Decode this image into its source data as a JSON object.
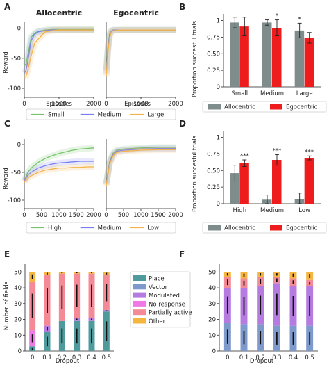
{
  "panels": {
    "A": "A",
    "B": "B",
    "C": "C",
    "D": "D",
    "E": "E",
    "F": "F"
  },
  "colors": {
    "small": "#77c46a",
    "medium": "#7a7ef0",
    "large": "#f5b24a",
    "allocentric_bar": "#7f8c8c",
    "egocentric_bar": "#ee1c1c",
    "place": "#4f9a9c",
    "vector": "#7e99cc",
    "modulated": "#b57be0",
    "no_response": "#ef7ae5",
    "partially_active": "#f48a96",
    "other": "#f4b63e"
  },
  "chart_data": [
    {
      "id": "A_allocentric",
      "type": "line",
      "title": "Allocentric",
      "xlabel": "Episodes",
      "ylabel": "Reward",
      "xlim": [
        0,
        2000
      ],
      "ylim": [
        -115,
        10
      ],
      "xticks": [
        0,
        1000,
        2000
      ],
      "yticks": [
        0,
        -50,
        -100
      ],
      "series": [
        {
          "name": "Small",
          "x": [
            0,
            50,
            100,
            200,
            300,
            400,
            600,
            800,
            1000,
            1500,
            2000
          ],
          "y": [
            -60,
            -60,
            -45,
            -15,
            -8,
            -5,
            -3,
            -2,
            -2,
            -2,
            -2
          ]
        },
        {
          "name": "Medium",
          "x": [
            0,
            50,
            100,
            200,
            300,
            400,
            600,
            800,
            1000,
            1500,
            2000
          ],
          "y": [
            -75,
            -70,
            -55,
            -20,
            -10,
            -6,
            -4,
            -3,
            -3,
            -3,
            -3
          ]
        },
        {
          "name": "Large",
          "x": [
            0,
            50,
            100,
            200,
            300,
            400,
            500,
            600,
            800,
            1000,
            1500,
            2000
          ],
          "y": [
            -80,
            -80,
            -70,
            -45,
            -25,
            -18,
            -12,
            -6,
            -4,
            -3,
            -3,
            -3
          ]
        }
      ]
    },
    {
      "id": "A_egocentric",
      "type": "line",
      "title": "Egocentric",
      "xlabel": "Episodes",
      "ylabel": "",
      "xlim": [
        0,
        2000
      ],
      "ylim": [
        -115,
        10
      ],
      "xticks": [
        0,
        1000,
        2000
      ],
      "yticks": [],
      "series": [
        {
          "name": "Small",
          "x": [
            0,
            50,
            100,
            150,
            200,
            400,
            1000,
            2000
          ],
          "y": [
            -70,
            -30,
            -8,
            -4,
            -3,
            -3,
            -3,
            -3
          ]
        },
        {
          "name": "Medium",
          "x": [
            0,
            50,
            100,
            150,
            200,
            400,
            1000,
            2000
          ],
          "y": [
            -75,
            -35,
            -10,
            -5,
            -3,
            -3,
            -3,
            -3
          ]
        },
        {
          "name": "Large",
          "x": [
            0,
            50,
            100,
            150,
            200,
            400,
            1000,
            2000
          ],
          "y": [
            -80,
            -40,
            -15,
            -6,
            -4,
            -3,
            -3,
            -3
          ]
        }
      ],
      "legend": [
        "Small",
        "Medium",
        "Large"
      ]
    },
    {
      "id": "B",
      "type": "bar",
      "xlabel": "",
      "ylabel": "Proportion succesful trials",
      "ylim": [
        0,
        1.1
      ],
      "yticks": [
        0,
        0.25,
        0.5,
        0.75,
        1.0
      ],
      "categories": [
        "Small",
        "Medium",
        "Large"
      ],
      "series": [
        {
          "name": "Allocentric",
          "values": [
            0.97,
            0.97,
            0.85
          ],
          "err": [
            0.08,
            0.04,
            0.11
          ]
        },
        {
          "name": "Egocentric",
          "values": [
            0.91,
            0.89,
            0.74
          ],
          "err": [
            0.14,
            0.12,
            0.08
          ]
        }
      ],
      "annotations": [
        "",
        "*",
        "*"
      ],
      "legend": [
        "Allocentric",
        "Egocentric"
      ]
    },
    {
      "id": "C_allocentric",
      "type": "line",
      "title": "",
      "xlabel": "",
      "ylabel": "Reward",
      "xlim": [
        0,
        2000
      ],
      "ylim": [
        -115,
        10
      ],
      "xticks": [
        0,
        500,
        1000,
        1500,
        2000
      ],
      "yticks": [
        0,
        -50,
        -100
      ],
      "series": [
        {
          "name": "High",
          "x": [
            0,
            100,
            200,
            400,
            600,
            800,
            1000,
            1200,
            1400,
            1600,
            1800,
            2000
          ],
          "y": [
            -65,
            -50,
            -42,
            -32,
            -25,
            -20,
            -16,
            -13,
            -10,
            -8,
            -7,
            -6
          ]
        },
        {
          "name": "Medium",
          "x": [
            0,
            100,
            200,
            400,
            600,
            800,
            1000,
            1200,
            1400,
            1600,
            1800,
            2000
          ],
          "y": [
            -65,
            -55,
            -50,
            -42,
            -38,
            -35,
            -33,
            -32,
            -31,
            -30,
            -30,
            -30
          ]
        },
        {
          "name": "Low",
          "x": [
            0,
            100,
            200,
            400,
            600,
            800,
            1000,
            1200,
            1400,
            1600,
            1800,
            2000
          ],
          "y": [
            -68,
            -60,
            -56,
            -50,
            -46,
            -44,
            -42,
            -42,
            -41,
            -41,
            -40,
            -40
          ]
        }
      ]
    },
    {
      "id": "C_egocentric",
      "type": "line",
      "title": "",
      "xlabel": "",
      "ylabel": "",
      "xlim": [
        0,
        2000
      ],
      "ylim": [
        -115,
        10
      ],
      "xticks": [
        0,
        500,
        1000,
        1500,
        2000
      ],
      "yticks": [],
      "series": [
        {
          "name": "High",
          "x": [
            0,
            100,
            200,
            300,
            500,
            1000,
            1500,
            2000
          ],
          "y": [
            -70,
            -30,
            -15,
            -10,
            -8,
            -6,
            -5,
            -5
          ]
        },
        {
          "name": "Medium",
          "x": [
            0,
            100,
            200,
            300,
            500,
            1000,
            1500,
            2000
          ],
          "y": [
            -72,
            -32,
            -18,
            -12,
            -10,
            -8,
            -7,
            -7
          ]
        },
        {
          "name": "Low",
          "x": [
            0,
            100,
            200,
            300,
            500,
            1000,
            1500,
            2000
          ],
          "y": [
            -74,
            -35,
            -20,
            -14,
            -12,
            -10,
            -9,
            -9
          ]
        }
      ],
      "legend": [
        "High",
        "Medium",
        "Low"
      ]
    },
    {
      "id": "D",
      "type": "bar",
      "xlabel": "",
      "ylabel": "Proportion succesful trials",
      "ylim": [
        0,
        1.1
      ],
      "yticks": [
        0,
        0.25,
        0.5,
        0.75,
        1.0
      ],
      "categories": [
        "High",
        "Medium",
        "Low"
      ],
      "series": [
        {
          "name": "Allocentric",
          "values": [
            0.46,
            0.06,
            0.07
          ],
          "err": [
            0.12,
            0.07,
            0.09
          ]
        },
        {
          "name": "Egocentric",
          "values": [
            0.61,
            0.66,
            0.69
          ],
          "err": [
            0.05,
            0.08,
            0.03
          ]
        }
      ],
      "annotations": [
        "***",
        "***",
        "***"
      ],
      "legend": [
        "Allocentric",
        "Egocentric"
      ]
    },
    {
      "id": "E",
      "type": "bar",
      "stacked": true,
      "xlabel": "Dropout",
      "ylabel": "Number of fields",
      "ylim": [
        0,
        55
      ],
      "yticks": [
        0,
        10,
        20,
        30,
        40,
        50
      ],
      "categories": [
        "0",
        "0.1",
        "0.2",
        "0.3",
        "0.4",
        "0.5"
      ],
      "series": [
        {
          "name": "Place",
          "values": [
            3,
            12,
            19,
            19,
            19,
            25
          ]
        },
        {
          "name": "Vector",
          "values": [
            0,
            0,
            0,
            0,
            0,
            0
          ]
        },
        {
          "name": "Modulated",
          "values": [
            0,
            4,
            0,
            2,
            2,
            1
          ]
        },
        {
          "name": "No response",
          "values": [
            10,
            0,
            0,
            0,
            0,
            0
          ]
        },
        {
          "name": "Partially active",
          "values": [
            31,
            32,
            30,
            28,
            28,
            22
          ]
        },
        {
          "name": "Other",
          "values": [
            6,
            2,
            1,
            1,
            1,
            2
          ]
        }
      ],
      "legend": [
        "Place",
        "Vector",
        "Modulated",
        "No response",
        "Partially active",
        "Other"
      ]
    },
    {
      "id": "F",
      "type": "bar",
      "stacked": true,
      "xlabel": "Dropout",
      "ylabel": "",
      "ylim": [
        0,
        55
      ],
      "yticks": [
        0,
        10,
        20,
        30,
        40,
        50
      ],
      "categories": [
        "0",
        "0.1",
        "0.2",
        "0.3",
        "0.4",
        "0.5"
      ],
      "series": [
        {
          "name": "Place",
          "values": [
            0,
            0,
            0,
            0,
            0,
            0
          ]
        },
        {
          "name": "Vector",
          "values": [
            18,
            17,
            17,
            16,
            16,
            16
          ]
        },
        {
          "name": "Modulated",
          "values": [
            22,
            23,
            24,
            27,
            25,
            25
          ]
        },
        {
          "name": "No response",
          "values": [
            0,
            0,
            0,
            0,
            0,
            0
          ]
        },
        {
          "name": "Partially active",
          "values": [
            7,
            6,
            6,
            4,
            5,
            4
          ]
        },
        {
          "name": "Other",
          "values": [
            3,
            4,
            3,
            3,
            4,
            5
          ]
        }
      ]
    }
  ]
}
